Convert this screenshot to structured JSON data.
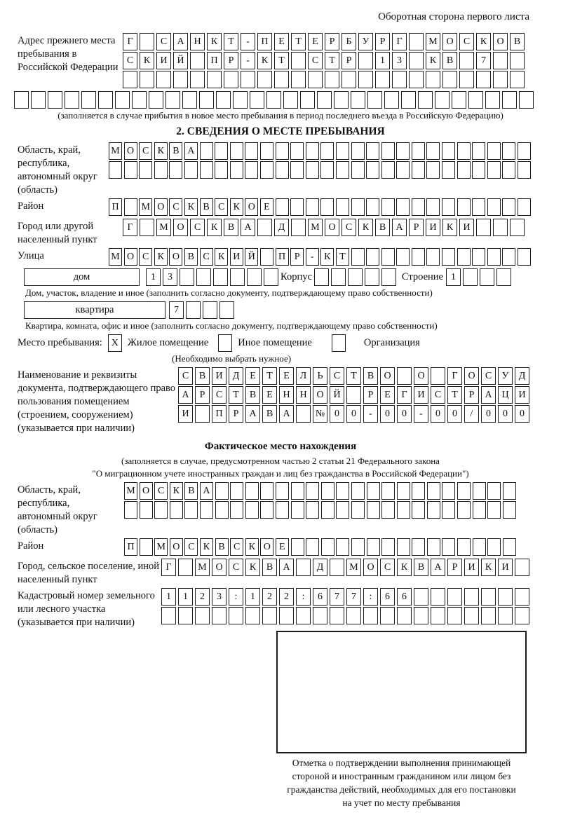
{
  "header": {
    "note": "Оборотная сторона первого листа"
  },
  "prev_address": {
    "label": "Адрес прежнего места пребывания в Российской Федерации",
    "row1": {
      "len": 24,
      "text": "Г САНКТ-ПЕТЕРБУРГ МОСКОВ"
    },
    "row2": {
      "len": 24,
      "text": "СКИЙ ПР-КТ СТР 13 КВ 7"
    },
    "row3": {
      "len": 24,
      "text": ""
    },
    "row4": {
      "len": 31,
      "text": ""
    },
    "caption": "(заполняется в случае прибытия в новое место пребывания в период последнего въезда в Российскую Федерацию)"
  },
  "section2": {
    "title": "2. СВЕДЕНИЯ О МЕСТЕ ПРЕБЫВАНИЯ",
    "oblast": {
      "label": "Область, край, республика, автономный округ (область)",
      "row1": {
        "len": 28,
        "text": "МОСКВА"
      },
      "row2": {
        "len": 28,
        "text": ""
      }
    },
    "raion": {
      "label": "Район",
      "row": {
        "len": 28,
        "text": "П МОСКВСКОЕ"
      }
    },
    "gorod": {
      "label": "Город или другой населенный пункт",
      "row": {
        "len": 24,
        "text": "Г МОСКВА Д МОСКВАРИКИ"
      }
    },
    "ulitsa": {
      "label": "Улица",
      "row": {
        "len": 28,
        "text": "МОСКОВСКИЙ ПР-КТ"
      }
    },
    "dom": {
      "box_label": "дом",
      "cells": {
        "len": 8,
        "text": "13"
      },
      "korpus_label": "Корпус",
      "korpus_cells": {
        "len": 5,
        "text": ""
      },
      "stroenie_label": "Строение",
      "stroenie_cells": {
        "len": 4,
        "text": "1"
      },
      "caption": "Дом, участок, владение и иное (заполнить согласно документу, подтверждающему право собственности)"
    },
    "kvartira": {
      "box_label": "квартира",
      "cells": {
        "len": 4,
        "text": "7"
      },
      "caption": "Квартира, комната, офис и иное (заполнить согласно документу, подтверждающему право собственности)"
    },
    "mesto": {
      "label": "Место пребывания:",
      "opt1": {
        "mark": "X",
        "label": "Жилое помещение"
      },
      "opt2": {
        "mark": "",
        "label": "Иное помещение"
      },
      "opt3": {
        "mark": "",
        "label": "Организация"
      },
      "note": "(Необходимо выбрать нужное)"
    },
    "doc": {
      "label": "Наименование и реквизиты документа, подтверждающего право пользования помещением (строением, сооружением) (указывается при наличии)",
      "row1": {
        "len": 21,
        "text": "СВИДЕТЕЛЬСТВО О ГОСУД"
      },
      "row2": {
        "len": 21,
        "text": "АРСТВЕННОЙ РЕГИСТРАЦИ"
      },
      "row3": {
        "len": 21,
        "text": "И ПРАВА №00-00-00/000"
      }
    }
  },
  "fakt": {
    "title": "Фактическое место нахождения",
    "caption1": "(заполняется в случае, предусмотренном частью 2 статьи 21 Федерального закона",
    "caption2": "\"О миграционном учете иностранных граждан и лиц без гражданства в Российской Федерации\")",
    "oblast": {
      "label": "Область, край, республика, автономный округ (область)",
      "row1": {
        "len": 26,
        "text": "МОСКВА"
      },
      "row2": {
        "len": 26,
        "text": ""
      }
    },
    "raion": {
      "label": "Район",
      "row": {
        "len": 26,
        "text": "П МОСКВСКОЕ"
      }
    },
    "gorod": {
      "label": "Город, сельское поселение, иной населенный пункт",
      "row": {
        "len": 22,
        "text": "Г МОСКВА Д МОСКВАРИКИ"
      }
    },
    "kadastr": {
      "label": "Кадастровый номер земельного или лесного участка (указывается при наличии)",
      "row1": {
        "len": 22,
        "text": "1123:122:677:66"
      },
      "row2": {
        "len": 22,
        "text": ""
      }
    },
    "stamp_caption": {
      "line1": "Отметка о подтверждении выполнения принимающей",
      "line2": "стороной и иностранным гражданином или лицом без",
      "line3": "гражданства действий, необходимых для его постановки",
      "line4": "на учет по месту пребывания"
    }
  }
}
